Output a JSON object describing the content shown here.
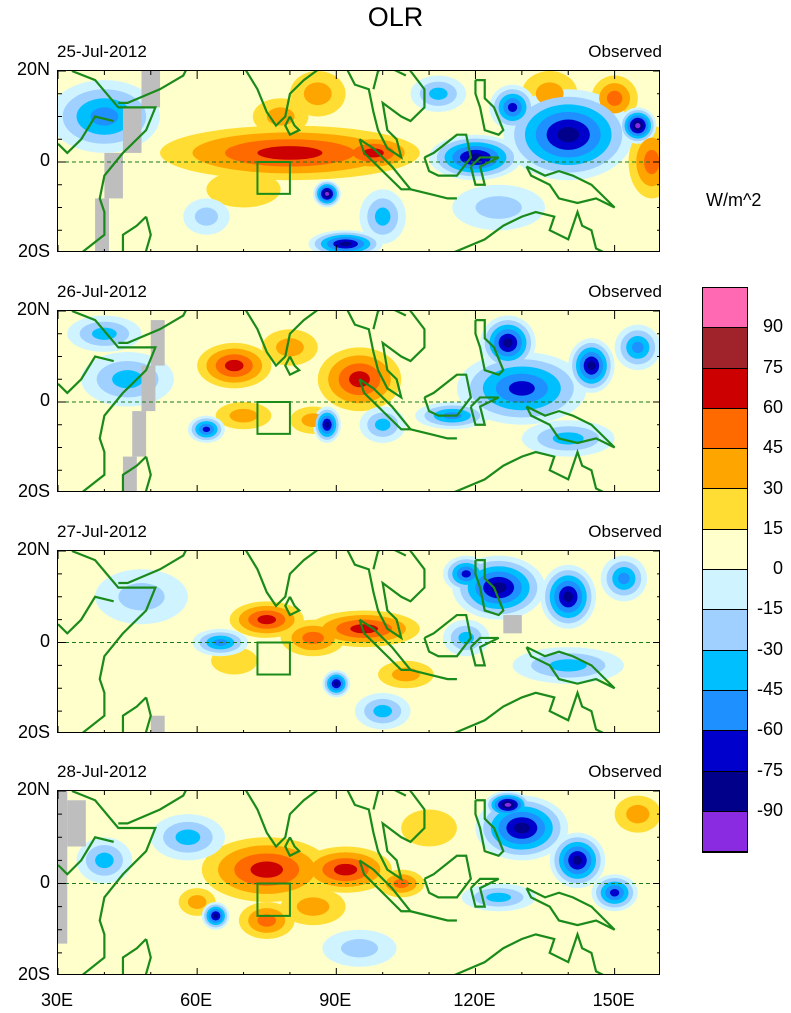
{
  "title": "OLR",
  "units": "W/m^2",
  "panels": [
    {
      "date": "25-Jul-2012",
      "label": "Observed"
    },
    {
      "date": "26-Jul-2012",
      "label": "Observed"
    },
    {
      "date": "27-Jul-2012",
      "label": "Observed"
    },
    {
      "date": "28-Jul-2012",
      "label": "Observed"
    }
  ],
  "y_ticks": [
    "20N",
    "0",
    "20S"
  ],
  "x_ticks": [
    "30E",
    "60E",
    "90E",
    "120E",
    "150E"
  ],
  "colorbar": {
    "levels": [
      "90",
      "75",
      "60",
      "45",
      "30",
      "15",
      "0",
      "-15",
      "-30",
      "-45",
      "-60",
      "-75",
      "-90"
    ],
    "colors": [
      "#FF69B4",
      "#A0222A",
      "#CC0000",
      "#FF6A00",
      "#FFA500",
      "#FFDD33",
      "#FFFFCC",
      "#D0F4FF",
      "#A0D0FF",
      "#00BFFF",
      "#1E90FF",
      "#0000CD",
      "#00008B",
      "#8A2BE2"
    ]
  },
  "chart_data": {
    "type": "heatmap",
    "title": "OLR",
    "units": "W/m^2",
    "lon_range": [
      30,
      160
    ],
    "lat_range": [
      -20,
      20
    ],
    "box": {
      "lon": [
        73,
        80
      ],
      "lat": [
        -7,
        0
      ]
    },
    "blob_format": "[lon, lat, lon_radius, lat_radius, peak_value]",
    "panels": [
      {
        "date": "25-Jul-2012",
        "blobs": [
          [
            80,
            2,
            28,
            6,
            65
          ],
          [
            98,
            2,
            9,
            4,
            60
          ],
          [
            78,
            10,
            6,
            4,
            30
          ],
          [
            86,
            15,
            6,
            5,
            40
          ],
          [
            150,
            14,
            5,
            5,
            45
          ],
          [
            136,
            15,
            6,
            5,
            30
          ],
          [
            158,
            0,
            5,
            8,
            45
          ],
          [
            70,
            -6,
            8,
            4,
            25
          ],
          [
            40,
            10,
            12,
            8,
            -45
          ],
          [
            120,
            1,
            10,
            5,
            -75
          ],
          [
            140,
            6,
            14,
            10,
            -75
          ],
          [
            128,
            12,
            5,
            5,
            -60
          ],
          [
            155,
            8,
            4,
            4,
            -90
          ],
          [
            88,
            -7,
            3,
            3,
            -90
          ],
          [
            92,
            -18,
            8,
            3,
            -75
          ],
          [
            100,
            -12,
            5,
            6,
            -30
          ],
          [
            125,
            -10,
            10,
            5,
            -20
          ],
          [
            62,
            -12,
            5,
            4,
            -25
          ],
          [
            112,
            15,
            6,
            4,
            -30
          ]
        ]
      },
      {
        "date": "26-Jul-2012",
        "blobs": [
          [
            68,
            8,
            8,
            5,
            60
          ],
          [
            95,
            5,
            9,
            7,
            70
          ],
          [
            80,
            12,
            6,
            4,
            35
          ],
          [
            85,
            -4,
            5,
            3,
            40
          ],
          [
            70,
            -3,
            6,
            3,
            30
          ],
          [
            130,
            3,
            14,
            8,
            -60
          ],
          [
            127,
            13,
            6,
            6,
            -80
          ],
          [
            145,
            8,
            5,
            6,
            -75
          ],
          [
            155,
            12,
            5,
            5,
            -50
          ],
          [
            88,
            -5,
            3,
            4,
            -75
          ],
          [
            100,
            -5,
            5,
            4,
            -30
          ],
          [
            62,
            -6,
            4,
            3,
            -60
          ],
          [
            45,
            5,
            10,
            6,
            -30
          ],
          [
            40,
            15,
            8,
            4,
            -40
          ],
          [
            140,
            -8,
            10,
            4,
            -30
          ],
          [
            115,
            -3,
            8,
            3,
            -45
          ]
        ]
      },
      {
        "date": "27-Jul-2012",
        "blobs": [
          [
            75,
            5,
            8,
            4,
            65
          ],
          [
            96,
            3,
            12,
            4,
            65
          ],
          [
            85,
            1,
            7,
            4,
            45
          ],
          [
            68,
            -4,
            5,
            3,
            25
          ],
          [
            105,
            -7,
            6,
            3,
            30
          ],
          [
            65,
            0,
            6,
            3,
            -45
          ],
          [
            90,
            -9,
            3,
            3,
            -75
          ],
          [
            125,
            12,
            10,
            7,
            -75
          ],
          [
            140,
            10,
            6,
            7,
            -80
          ],
          [
            152,
            14,
            5,
            5,
            -50
          ],
          [
            118,
            1,
            5,
            4,
            -30
          ],
          [
            140,
            -5,
            12,
            4,
            -30
          ],
          [
            48,
            10,
            10,
            6,
            -25
          ],
          [
            100,
            -15,
            6,
            4,
            -30
          ],
          [
            118,
            15,
            5,
            4,
            -60
          ]
        ]
      },
      {
        "date": "28-Jul-2012",
        "blobs": [
          [
            75,
            3,
            14,
            7,
            65
          ],
          [
            92,
            3,
            10,
            5,
            60
          ],
          [
            85,
            -5,
            7,
            4,
            40
          ],
          [
            104,
            0,
            5,
            3,
            50
          ],
          [
            60,
            -4,
            4,
            3,
            35
          ],
          [
            75,
            -8,
            6,
            4,
            45
          ],
          [
            130,
            12,
            10,
            7,
            -80
          ],
          [
            142,
            5,
            6,
            6,
            -80
          ],
          [
            127,
            17,
            5,
            3,
            -90
          ],
          [
            150,
            -2,
            5,
            4,
            -60
          ],
          [
            58,
            10,
            8,
            5,
            -30
          ],
          [
            40,
            5,
            6,
            5,
            -40
          ],
          [
            64,
            -7,
            3,
            3,
            -75
          ],
          [
            125,
            -3,
            8,
            3,
            -30
          ],
          [
            95,
            -14,
            8,
            4,
            -25
          ],
          [
            155,
            15,
            5,
            4,
            30
          ],
          [
            110,
            12,
            6,
            4,
            20
          ]
        ]
      }
    ]
  }
}
